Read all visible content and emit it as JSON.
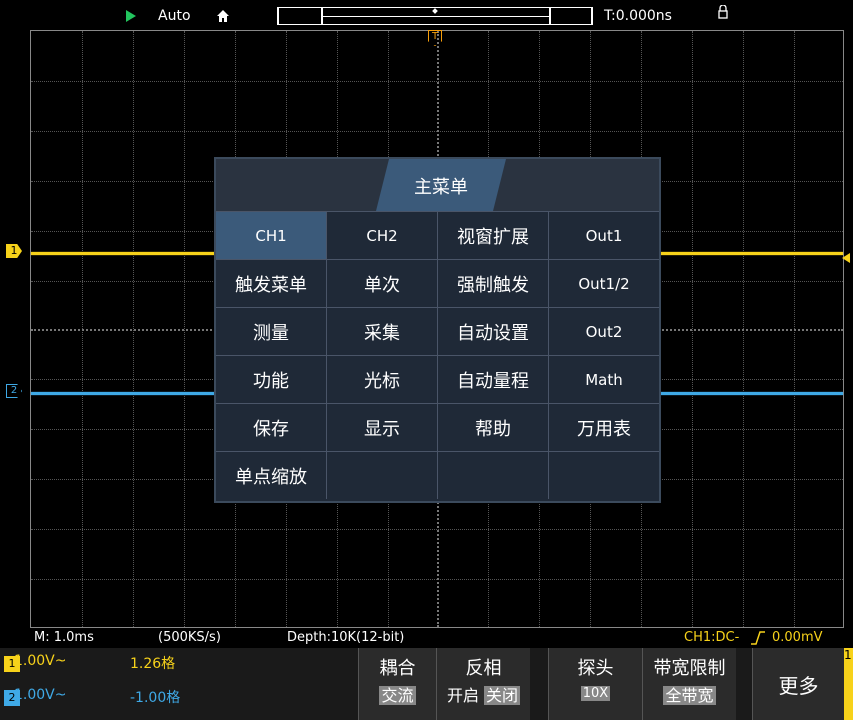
{
  "topbar": {
    "mode": "Auto",
    "time": "T:0.000ns"
  },
  "colors": {
    "ch1": "#f7d21a",
    "ch2": "#3fa9e6",
    "menu_active": "#3b5a7a",
    "run": "#22c55e"
  },
  "markers": {
    "ch1": "1",
    "ch2": "2",
    "trigger": "T"
  },
  "menu": {
    "title": "主菜单",
    "rows": [
      [
        "CH1",
        "CH2",
        "视窗扩展",
        "Out1"
      ],
      [
        "触发菜单",
        "单次",
        "强制触发",
        "Out1/2"
      ],
      [
        "测量",
        "采集",
        "自动设置",
        "Out2"
      ],
      [
        "功能",
        "光标",
        "自动量程",
        "Math"
      ],
      [
        "保存",
        "显示",
        "帮助",
        "万用表"
      ],
      [
        "单点缩放",
        "",
        "",
        ""
      ]
    ]
  },
  "status": {
    "timebase": "M: 1.0ms",
    "sample_rate": "(500KS/s)",
    "depth": "Depth:10K(12-bit)",
    "trigger": "CH1:DC-",
    "trigger_level": "0.00mV"
  },
  "channels": [
    {
      "badge": "1",
      "volt": "1.00V~",
      "pos": "1.26格"
    },
    {
      "badge": "2",
      "volt": "1.00V~",
      "pos": "-1.00格"
    }
  ],
  "buttons": {
    "coupling": {
      "label": "耦合",
      "value": "交流"
    },
    "invert": {
      "label": "反相",
      "on": "开启",
      "off": "关闭"
    },
    "probe": {
      "label": "探头",
      "value": "10X"
    },
    "bandwidth": {
      "label": "带宽限制",
      "value": "全带宽"
    },
    "more": "更多",
    "page": "1"
  }
}
